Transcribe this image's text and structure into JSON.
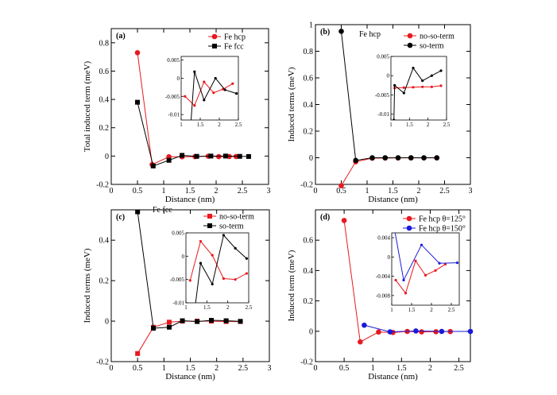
{
  "chart_data": [
    {
      "type": "line",
      "panel_label": "(a)",
      "annotation": "",
      "xlabel": "Distance (nm)",
      "ylabel": "Total induced term (meV)",
      "xlim": [
        0,
        3
      ],
      "ylim": [
        -0.2,
        0.9
      ],
      "xticks": [
        "0",
        "0.5",
        "1",
        "1.5",
        "2",
        "2.5",
        "3"
      ],
      "yticks": [
        "-0.2",
        "0",
        "0.2",
        "0.4",
        "0.6",
        "0.8"
      ],
      "series": [
        {
          "name": "Fe hcp",
          "color": "#e8191f",
          "marker": "circle",
          "x": [
            0.5,
            0.78,
            1.1,
            1.35,
            1.6,
            1.85,
            2.05,
            2.25,
            2.38
          ],
          "y": [
            0.73,
            -0.06,
            -0.005,
            -0.005,
            -0.004,
            -0.001,
            -0.004,
            -0.003,
            -0.003
          ]
        },
        {
          "name": "Fe fcc",
          "color": "#000000",
          "marker": "square",
          "x": [
            0.5,
            0.8,
            1.1,
            1.35,
            1.63,
            1.9,
            2.18,
            2.45,
            2.62
          ],
          "y": [
            0.38,
            -0.07,
            -0.03,
            0.005,
            -0.002,
            0.0,
            0.0,
            -0.002,
            -0.003
          ]
        }
      ],
      "inset": {
        "xlim": [
          1,
          2.5
        ],
        "ylim": [
          -0.0115,
          0.006
        ],
        "xticks": [
          "1",
          "1.5",
          "2",
          "2.5"
        ],
        "yticks": [
          "-0.01",
          "-0.005",
          "0",
          "0.005"
        ],
        "series": [
          {
            "name": "Fe hcp",
            "color": "#e8191f",
            "x": [
              1.1,
              1.35,
              1.6,
              1.85,
              2.1,
              2.35
            ],
            "y": [
              -0.005,
              -0.0075,
              -0.001,
              -0.004,
              -0.003,
              -0.0015
            ]
          },
          {
            "name": "Fe fcc",
            "color": "#000000",
            "x": [
              1.25,
              1.35,
              1.6,
              1.9,
              2.15,
              2.45
            ],
            "y": [
              -0.013,
              0.0018,
              -0.006,
              0.0,
              -0.0032,
              -0.0042
            ]
          }
        ]
      }
    },
    {
      "type": "line",
      "panel_label": "(b)",
      "annotation": "Fe hcp",
      "xlabel": "Distance (nm)",
      "ylabel": "Induced terms (meV)",
      "xlim": [
        0,
        3
      ],
      "ylim": [
        -0.2,
        1.0
      ],
      "xticks": [
        "0",
        "0.5",
        "1",
        "1.5",
        "2",
        "2.5",
        "3"
      ],
      "yticks": [
        "-0.2",
        "0",
        "0.2",
        "0.4",
        "0.6",
        "0.8",
        "1"
      ],
      "series": [
        {
          "name": "no-so-term",
          "color": "#e8191f",
          "marker": "circle",
          "x": [
            0.5,
            0.78,
            1.1,
            1.35,
            1.6,
            1.85,
            2.1,
            2.35
          ],
          "y": [
            -0.21,
            -0.03,
            -0.003,
            -0.002,
            -0.001,
            -0.001,
            -0.001,
            -0.001
          ]
        },
        {
          "name": "so-term",
          "color": "#000000",
          "marker": "circle",
          "x": [
            0.5,
            0.78,
            1.1,
            1.35,
            1.6,
            1.85,
            2.1,
            2.35
          ],
          "y": [
            0.95,
            -0.02,
            0.0,
            0.0,
            0.0,
            0.0,
            0.0,
            0.0
          ]
        }
      ],
      "inset": {
        "xlim": [
          1,
          2.5
        ],
        "ylim": [
          -0.0115,
          0.005
        ],
        "xticks": [
          "1",
          "1.5",
          "2",
          "2.5"
        ],
        "yticks": [
          "-0.01",
          "-0.005",
          "0",
          "0.005"
        ],
        "series": [
          {
            "name": "no-so-term",
            "color": "#e8191f",
            "x": [
              1.1,
              1.35,
              1.6,
              1.85,
              2.1,
              2.35
            ],
            "y": [
              -0.0032,
              -0.0031,
              -0.003,
              -0.0029,
              -0.0029,
              -0.0026
            ]
          },
          {
            "name": "so-term",
            "color": "#000000",
            "x": [
              1.08,
              1.1,
              1.35,
              1.6,
              1.85,
              2.1,
              2.35
            ],
            "y": [
              -0.0115,
              -0.0025,
              -0.0045,
              0.002,
              -0.0013,
              0.0,
              0.0013
            ]
          }
        ]
      }
    },
    {
      "type": "line",
      "panel_label": "(c)",
      "annotation": "Fe fcc",
      "xlabel": "Distance (nm)",
      "ylabel": "Induced terms (meV)",
      "xlim": [
        0,
        3
      ],
      "ylim": [
        -0.2,
        0.55
      ],
      "xticks": [
        "0",
        "0.5",
        "1",
        "1.5",
        "2",
        "2.5",
        "3"
      ],
      "yticks": [
        "-0.2",
        "0",
        "0.2",
        "0.4"
      ],
      "series": [
        {
          "name": "no-so-term",
          "color": "#e8191f",
          "marker": "square",
          "x": [
            0.5,
            0.8,
            1.1,
            1.35,
            1.63,
            1.9,
            2.18,
            2.45
          ],
          "y": [
            -0.16,
            -0.03,
            -0.005,
            0.0,
            0.0,
            0.0,
            -0.002,
            -0.002
          ]
        },
        {
          "name": "so-term",
          "color": "#000000",
          "marker": "square",
          "x": [
            0.5,
            0.8,
            1.1,
            1.35,
            1.63,
            1.9,
            2.18,
            2.45
          ],
          "y": [
            0.54,
            -0.035,
            -0.03,
            0.002,
            -0.002,
            0.004,
            0.002,
            -0.001
          ]
        }
      ],
      "inset": {
        "xlim": [
          1,
          2.5
        ],
        "ylim": [
          -0.01,
          0.005
        ],
        "xticks": [
          "1",
          "1.5",
          "2",
          "2.5"
        ],
        "yticks": [
          "-0.01",
          "-0.005",
          "0",
          "0.005"
        ],
        "series": [
          {
            "name": "no-so-term",
            "color": "#e8191f",
            "x": [
              1.1,
              1.35,
              1.63,
              1.9,
              2.18,
              2.45
            ],
            "y": [
              -0.0052,
              0.0032,
              0.0002,
              -0.0048,
              -0.005,
              -0.0037
            ]
          },
          {
            "name": "so-term",
            "color": "#000000",
            "x": [
              1.1,
              1.35,
              1.63,
              1.9,
              2.18,
              2.45
            ],
            "y": [
              -0.0195,
              -0.0015,
              -0.006,
              0.0045,
              0.0017,
              -0.0005
            ]
          }
        ]
      }
    },
    {
      "type": "line",
      "panel_label": "(d)",
      "annotation": "",
      "xlabel": "Distance (nm)",
      "ylabel": "Induced term (meV)",
      "xlim": [
        0,
        2.7
      ],
      "ylim": [
        -0.2,
        0.8
      ],
      "xticks": [
        "0",
        "0.5",
        "1",
        "1.5",
        "2",
        "2.5"
      ],
      "yticks": [
        "-0.2",
        "0",
        "0.2",
        "0.4",
        "0.6"
      ],
      "series": [
        {
          "name": "Fe hcp θ=125°",
          "color": "#e8191f",
          "marker": "circle",
          "x": [
            0.5,
            0.78,
            1.1,
            1.35,
            1.6,
            1.85,
            2.1,
            2.35
          ],
          "y": [
            0.73,
            -0.07,
            -0.005,
            -0.008,
            -0.001,
            -0.004,
            -0.003,
            -0.002
          ]
        },
        {
          "name": "Fe hcp θ=150°",
          "color": "#1a1adb",
          "marker": "circle",
          "x": [
            0.85,
            1.3,
            1.75,
            2.2,
            2.7
          ],
          "y": [
            0.04,
            -0.004,
            0.002,
            -0.001,
            -0.001
          ]
        }
      ],
      "inset": {
        "xlim": [
          1,
          2.7
        ],
        "ylim": [
          -0.01,
          0.005
        ],
        "xticks": [
          "1",
          "1.5",
          "2",
          "2.5"
        ],
        "yticks": [
          "-0.008",
          "-0.004",
          "0",
          "0.004"
        ],
        "series": [
          {
            "name": "Fe hcp θ=125°",
            "color": "#e8191f",
            "x": [
              1.1,
              1.35,
              1.6,
              1.85,
              2.1,
              2.35
            ],
            "y": [
              -0.0048,
              -0.0075,
              -0.0008,
              -0.0038,
              -0.0028,
              -0.0015
            ]
          },
          {
            "name": "Fe hcp θ=150°",
            "color": "#1a1adb",
            "x": [
              1.06,
              1.3,
              1.75,
              2.2,
              2.65
            ],
            "y": [
              0.0062,
              -0.0048,
              0.0025,
              -0.0013,
              -0.0012
            ]
          }
        ]
      }
    }
  ]
}
